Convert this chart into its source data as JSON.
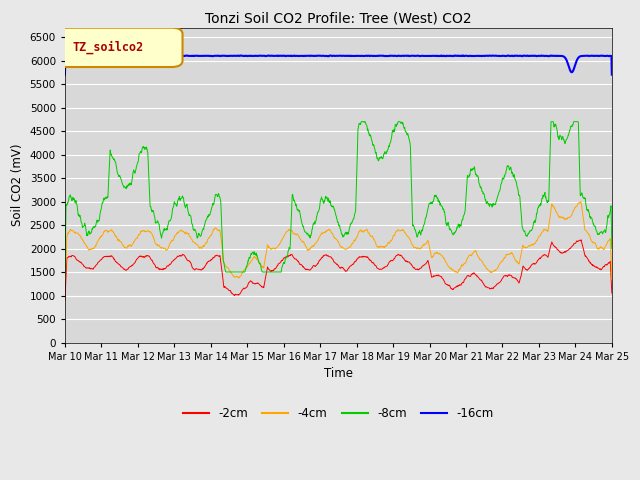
{
  "title": "Tonzi Soil CO2 Profile: Tree (West) CO2",
  "xlabel": "Time",
  "ylabel": "Soil CO2 (mV)",
  "ylim": [
    0,
    6700
  ],
  "yticks": [
    0,
    500,
    1000,
    1500,
    2000,
    2500,
    3000,
    3500,
    4000,
    4500,
    5000,
    5500,
    6000,
    6500
  ],
  "bg_color": "#d8d8d8",
  "fig_color": "#e8e8e8",
  "series_colors": [
    "#ff0000",
    "#ffa500",
    "#00cc00",
    "#0000ff"
  ],
  "series_labels": [
    "-2cm",
    "-4cm",
    "-8cm",
    "-16cm"
  ],
  "legend_box_label": "TZ_soilco2",
  "legend_box_facecolor": "#ffffcc",
  "legend_box_edgecolor": "#cc8800",
  "xticklabels": [
    "Mar 10",
    "Mar 11",
    "Mar 12",
    "Mar 13",
    "Mar 14",
    "Mar 15",
    "Mar 16",
    "Mar 17",
    "Mar 18",
    "Mar 19",
    "Mar 20",
    "Mar 21",
    "Mar 22",
    "Mar 23",
    "Mar 24",
    "Mar 25"
  ]
}
